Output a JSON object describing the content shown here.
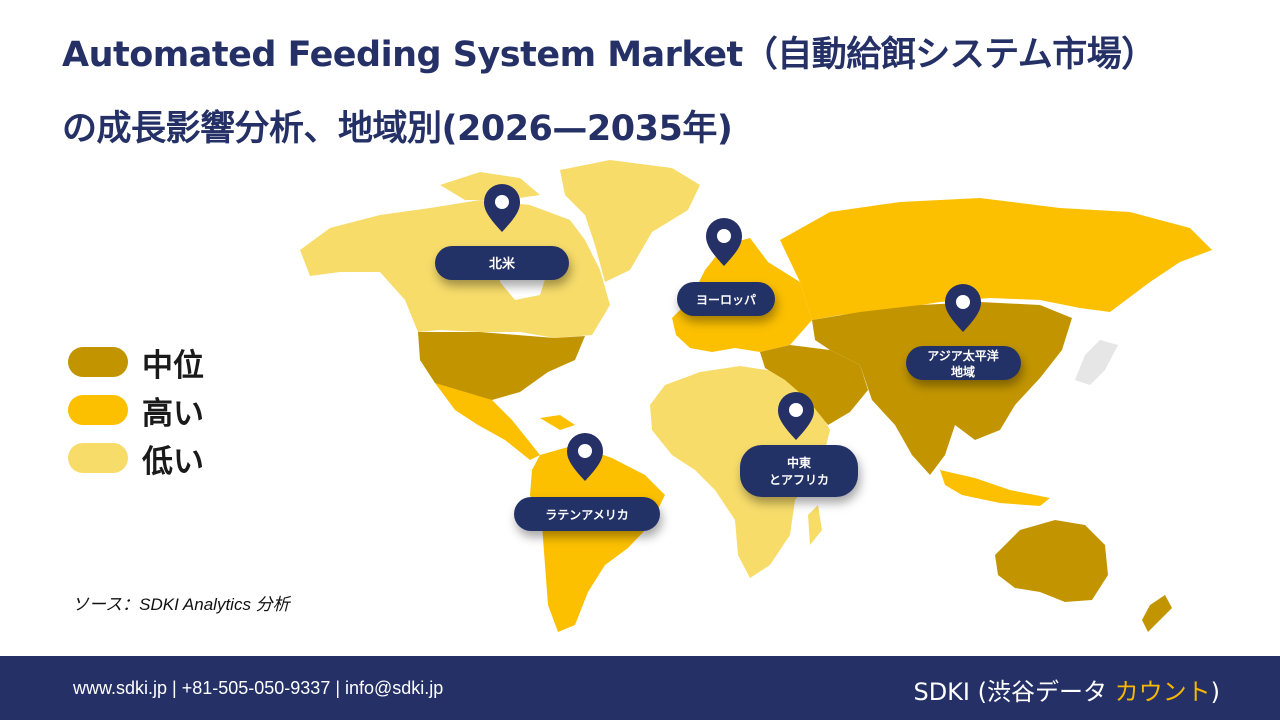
{
  "title": {
    "line1": "Automated Feeding System Market（自動給餌システム市場）",
    "line2": "の成長影響分析、地域別(2026—2035年)"
  },
  "colors": {
    "title": "#243066",
    "medium": "#c29500",
    "high": "#fcc000",
    "low": "#f7dc6a",
    "marker": "#243066",
    "footer_bg": "#243066",
    "brand_accent": "#f5b700"
  },
  "legend": [
    {
      "label": "中位",
      "level": "medium",
      "color": "#c29500"
    },
    {
      "label": "高い",
      "level": "high",
      "color": "#fcc000"
    },
    {
      "label": "低い",
      "level": "low",
      "color": "#f7dc6a"
    }
  ],
  "regions": {
    "north_america": {
      "label": "北米",
      "level": "mixed"
    },
    "europe": {
      "label": "ヨーロッパ",
      "level": "high"
    },
    "asia_pacific": {
      "label_line1": "アジア太平洋",
      "label_line2": "地域",
      "level": "medium"
    },
    "middle_east_africa": {
      "label_line1": "中東",
      "label_line2": "とアフリカ",
      "level": "low"
    },
    "latin_america": {
      "label": "ラテンアメリカ",
      "level": "high"
    }
  },
  "source": "ソース：SDKI Analytics 分析",
  "footer": {
    "contact": "www.sdki.jp | +81-505-050-9337 | info@sdki.jp",
    "brand_prefix": "SDKI (渋谷データ ",
    "brand_accent": "カウント",
    "brand_suffix": ")"
  }
}
